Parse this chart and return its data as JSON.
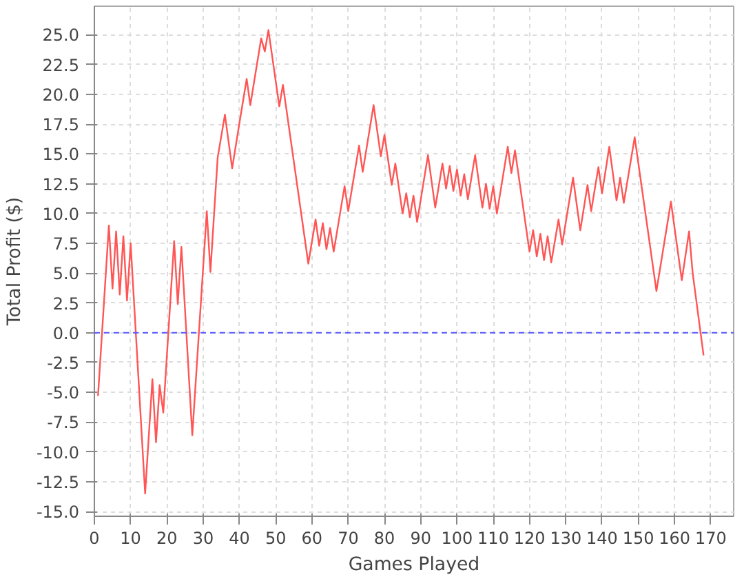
{
  "chart_data": {
    "type": "line",
    "xlabel": "Games Played",
    "ylabel": "Total Profit ($)",
    "xlim": [
      0,
      176.3
    ],
    "ylim": [
      -15.4,
      27.4
    ],
    "xticks": [
      0,
      10,
      20,
      30,
      40,
      50,
      60,
      70,
      80,
      90,
      100,
      110,
      120,
      130,
      140,
      150,
      160,
      170
    ],
    "yticks": [
      {
        "value": -15,
        "label": "-15.0"
      },
      {
        "value": -12.5,
        "label": "-12.5"
      },
      {
        "value": -10,
        "label": "-10.0"
      },
      {
        "value": -7.5,
        "label": "-7.5"
      },
      {
        "value": -5,
        "label": "-5.0"
      },
      {
        "value": -2.5,
        "label": "-2.5"
      },
      {
        "value": 0,
        "label": "0.0"
      },
      {
        "value": 2.5,
        "label": "2.5"
      },
      {
        "value": 5,
        "label": "5.0"
      },
      {
        "value": 7.5,
        "label": "7.5"
      },
      {
        "value": 10,
        "label": "10.0"
      },
      {
        "value": 12.5,
        "label": "12.5"
      },
      {
        "value": 15,
        "label": "15.0"
      },
      {
        "value": 17.5,
        "label": "17.5"
      },
      {
        "value": 20,
        "label": "20.0"
      },
      {
        "value": 22.5,
        "label": "22.5"
      },
      {
        "value": 25,
        "label": "25.0"
      }
    ],
    "grid": true,
    "marker": "none",
    "line_style": "solid",
    "ref_lines": [
      {
        "axis": "y",
        "value": 0,
        "color": "#5555ff",
        "line_style": "dashed"
      }
    ],
    "series": [
      {
        "color": "#ff5555",
        "x": [
          1,
          4,
          5,
          6,
          7,
          8,
          9,
          10,
          14,
          16,
          17,
          18,
          19,
          22,
          23,
          24,
          27,
          31,
          32,
          34,
          36,
          38,
          40,
          42,
          43,
          46,
          47,
          48,
          51,
          52,
          59,
          61,
          62,
          63,
          64,
          65,
          66,
          69,
          70,
          73,
          74,
          77,
          79,
          80,
          82,
          83,
          85,
          86,
          87,
          88,
          89,
          92,
          94,
          96,
          97,
          98,
          99,
          100,
          101,
          102,
          103,
          105,
          107,
          108,
          109,
          110,
          111,
          114,
          115,
          116,
          120,
          121,
          122,
          123,
          124,
          125,
          126,
          128,
          129,
          132,
          134,
          136,
          137,
          139,
          140,
          142,
          144,
          145,
          146,
          149,
          155,
          159,
          162,
          164,
          165,
          168
        ],
        "values": [
          -5.3,
          9.0,
          3.7,
          8.5,
          3.2,
          8.1,
          2.7,
          7.5,
          -13.5,
          -3.9,
          -9.2,
          -4.4,
          -6.7,
          7.7,
          2.4,
          7.2,
          -8.6,
          10.2,
          5.1,
          14.7,
          18.3,
          13.8,
          17.6,
          21.3,
          19.1,
          24.7,
          23.6,
          25.4,
          19.0,
          20.8,
          5.8,
          9.5,
          7.3,
          9.2,
          7.0,
          8.8,
          6.8,
          12.3,
          10.2,
          15.7,
          13.5,
          19.1,
          14.8,
          16.6,
          12.4,
          14.2,
          10.0,
          11.7,
          9.7,
          11.5,
          9.3,
          14.9,
          10.5,
          14.2,
          12.1,
          14.0,
          11.9,
          13.7,
          11.5,
          13.3,
          11.2,
          14.9,
          10.5,
          12.5,
          10.4,
          12.3,
          10.0,
          15.6,
          13.4,
          15.3,
          6.8,
          8.6,
          6.4,
          8.3,
          6.1,
          8.1,
          5.9,
          9.5,
          7.4,
          13.0,
          8.6,
          12.4,
          10.2,
          13.9,
          11.7,
          15.6,
          11.1,
          13.0,
          10.9,
          16.4,
          3.5,
          11.0,
          4.4,
          8.5,
          5.0,
          -1.9
        ]
      }
    ]
  }
}
